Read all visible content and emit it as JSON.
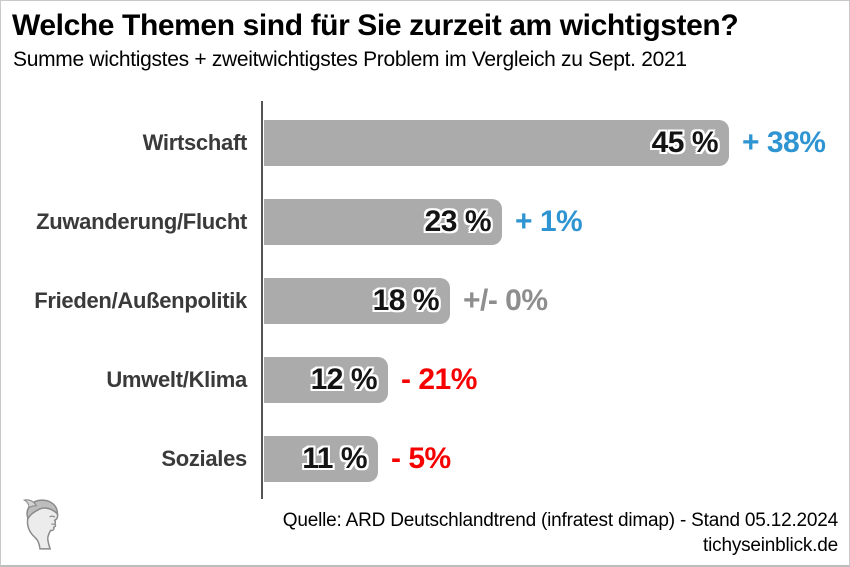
{
  "title": "Welche Themen sind für Sie zurzeit am wichtigsten?",
  "subtitle": "Summe wichtigstes + zweitwichtigstes Problem im Vergleich zu Sept. 2021",
  "chart_data": {
    "type": "bar",
    "orientation": "horizontal",
    "title": "Welche Themen sind für Sie zurzeit am wichtigsten?",
    "subtitle": "Summe wichtigstes + zweitwichtigstes Problem im Vergleich zu Sept. 2021",
    "categories": [
      "Wirtschaft",
      "Zuwanderung/Flucht",
      "Frieden/Außenpolitik",
      "Umwelt/Klima",
      "Soziales"
    ],
    "values": [
      45,
      23,
      18,
      12,
      11
    ],
    "bar_labels": [
      "45 %",
      "23 %",
      "18 %",
      "12 %",
      "11 %"
    ],
    "change_labels": [
      "+ 38%",
      "+ 1%",
      "+/- 0%",
      "- 21%",
      "- 5%"
    ],
    "change_types": [
      "positive",
      "positive",
      "neutral",
      "negative",
      "negative"
    ],
    "xlim": [
      0,
      45
    ],
    "grid": false,
    "legend": false,
    "bar_color": "#ababab",
    "change_colors": {
      "positive": "#2f95d2",
      "neutral": "#8e8e8e",
      "negative": "#f60000"
    }
  },
  "footer": {
    "source": "Quelle: ARD Deutschlandtrend (infratest dimap) - Stand 05.12.2024",
    "website": "tichyseinblick.de"
  },
  "logo": {
    "name": "tichys-einblick-head-logo"
  }
}
